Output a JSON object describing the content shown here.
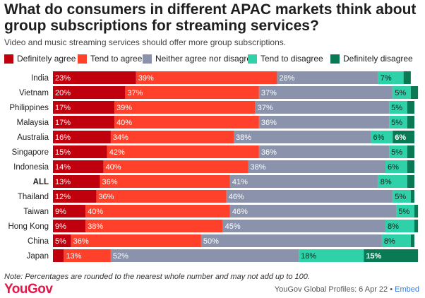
{
  "header": {
    "title": "What do consumers in different APAC markets think about group subscriptions for streaming services?",
    "subtitle": "Video and music streaming services should offer more group subscriptions."
  },
  "colors": {
    "Definitely agree": "#c0000c",
    "Tend to agree": "#ff412c",
    "Neither agree nor disagree": "#8a93ab",
    "Tend to disagree": "#2fd1a9",
    "Definitely disagree": "#0a7a55"
  },
  "chart_data": {
    "type": "bar",
    "orientation": "horizontal",
    "stacked": true,
    "title": "What do consumers in different APAC markets think about group subscriptions for streaming services?",
    "subtitle": "Video and music streaming services should offer more group subscriptions.",
    "xlim": [
      0,
      100
    ],
    "legend_position": "top",
    "grid": false,
    "categories": [
      "India",
      "Vietnam",
      "Philippines",
      "Malaysia",
      "Australia",
      "Singapore",
      "Indonesia",
      "ALL",
      "Thailand",
      "Taiwan",
      "Hong Kong",
      "China",
      "Japan"
    ],
    "bold_categories": [
      "ALL"
    ],
    "series": [
      {
        "name": "Definitely agree",
        "values": [
          23,
          20,
          17,
          17,
          16,
          15,
          14,
          13,
          12,
          9,
          9,
          5,
          3
        ]
      },
      {
        "name": "Tend to agree",
        "values": [
          39,
          37,
          39,
          40,
          34,
          42,
          40,
          36,
          36,
          40,
          38,
          36,
          13
        ]
      },
      {
        "name": "Neither agree nor disagree",
        "values": [
          28,
          37,
          37,
          36,
          38,
          36,
          38,
          41,
          46,
          46,
          45,
          50,
          52
        ]
      },
      {
        "name": "Tend to disagree",
        "values": [
          7,
          5,
          5,
          5,
          6,
          5,
          6,
          8,
          5,
          5,
          8,
          8,
          18
        ]
      },
      {
        "name": "Definitely disagree",
        "values": [
          2,
          2,
          2,
          2,
          6,
          2,
          2,
          2,
          1,
          1,
          1,
          1,
          15
        ]
      }
    ],
    "data_labels": [
      [
        "23%",
        "39%",
        "28%",
        "7%",
        ""
      ],
      [
        "20%",
        "37%",
        "37%",
        "5%",
        ""
      ],
      [
        "17%",
        "39%",
        "37%",
        "5%",
        ""
      ],
      [
        "17%",
        "40%",
        "36%",
        "5%",
        ""
      ],
      [
        "16%",
        "34%",
        "38%",
        "6%",
        "6%"
      ],
      [
        "15%",
        "42%",
        "36%",
        "5%",
        ""
      ],
      [
        "14%",
        "40%",
        "38%",
        "6%",
        ""
      ],
      [
        "13%",
        "36%",
        "41%",
        "8%",
        ""
      ],
      [
        "12%",
        "36%",
        "46%",
        "5%",
        ""
      ],
      [
        "9%",
        "40%",
        "46%",
        "5%",
        ""
      ],
      [
        "9%",
        "38%",
        "45%",
        "8%",
        ""
      ],
      [
        "5%",
        "36%",
        "50%",
        "8%",
        ""
      ],
      [
        "",
        "13%",
        "52%",
        "18%",
        "15%"
      ]
    ]
  },
  "footer": {
    "note": "Note: Percentages are rounded to the nearest whole number and may not add up to 100.",
    "logo": "YouGov",
    "source": "YouGov Global Profiles: 6 Apr 22",
    "separator": " • ",
    "embed": "Embed"
  }
}
